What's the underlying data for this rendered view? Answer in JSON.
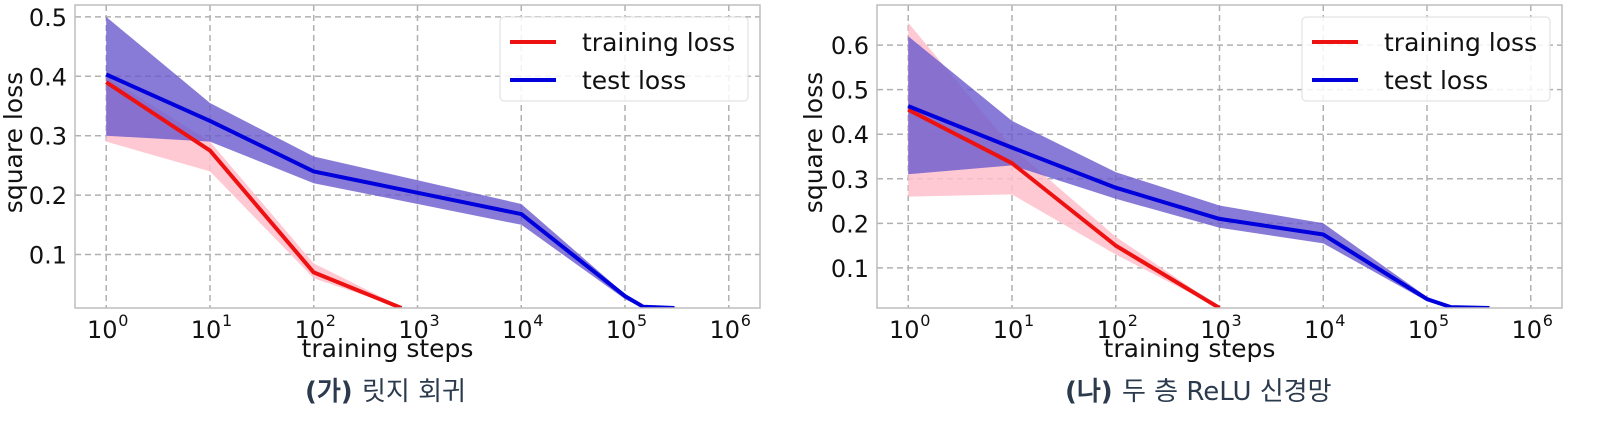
{
  "panels": [
    {
      "caption_label": "(가)",
      "caption_text": "릿지 회귀",
      "chart_data": {
        "type": "line",
        "xscale": "log",
        "xlim": [
          0.5,
          2000000
        ],
        "ylim": [
          0.01,
          0.52
        ],
        "xlabel": "training steps",
        "ylabel": "square loss",
        "yticks": [
          0.1,
          0.2,
          0.3,
          0.4,
          0.5
        ],
        "yticklabels": [
          "0.1",
          "0.2",
          "0.3",
          "0.4",
          "0.5"
        ],
        "xticks": [
          1,
          10,
          100,
          1000,
          10000,
          100000,
          1000000
        ],
        "xticklabels": [
          "0",
          "1",
          "2",
          "3",
          "4",
          "5",
          "6"
        ],
        "xtick_base": "10",
        "grid": true,
        "legend_position": "top-right",
        "series": [
          {
            "name": "training loss",
            "color": "#ee1111",
            "band_color": "#ffc0cb",
            "x": [
              1,
              10,
              100,
              700
            ],
            "y": [
              0.39,
              0.275,
              0.07,
              0.01
            ],
            "lower": [
              0.29,
              0.24,
              0.06,
              0.01
            ],
            "upper": [
              0.4,
              0.29,
              0.085,
              0.012
            ]
          },
          {
            "name": "test loss",
            "color": "#0000dd",
            "band_color": "#6a5acd",
            "x": [
              1,
              10,
              100,
              10000,
              100000,
              150000,
              300000
            ],
            "y": [
              0.403,
              0.325,
              0.24,
              0.168,
              0.03,
              0.012,
              0.01
            ],
            "lower": [
              0.3,
              0.29,
              0.22,
              0.15,
              0.025,
              0.01,
              0.01
            ],
            "upper": [
              0.5,
              0.355,
              0.265,
              0.185,
              0.033,
              0.014,
              0.01
            ]
          }
        ]
      }
    },
    {
      "caption_label": "(나)",
      "caption_text": "두 층 ReLU 신경망",
      "chart_data": {
        "type": "line",
        "xscale": "log",
        "xlim": [
          0.5,
          2000000
        ],
        "ylim": [
          0.01,
          0.69
        ],
        "xlabel": "training steps",
        "ylabel": "square loss",
        "yticks": [
          0.1,
          0.2,
          0.3,
          0.4,
          0.5,
          0.6
        ],
        "yticklabels": [
          "0.1",
          "0.2",
          "0.3",
          "0.4",
          "0.5",
          "0.6"
        ],
        "xticks": [
          1,
          10,
          100,
          1000,
          10000,
          100000,
          1000000
        ],
        "xticklabels": [
          "0",
          "1",
          "2",
          "3",
          "4",
          "5",
          "6"
        ],
        "xtick_base": "10",
        "grid": true,
        "legend_position": "top-right",
        "series": [
          {
            "name": "training loss",
            "color": "#ee1111",
            "band_color": "#ffc0cb",
            "x": [
              1,
              10,
              100,
              1000
            ],
            "y": [
              0.455,
              0.335,
              0.15,
              0.01
            ],
            "lower": [
              0.26,
              0.265,
              0.13,
              0.01
            ],
            "upper": [
              0.65,
              0.37,
              0.17,
              0.012
            ]
          },
          {
            "name": "test loss",
            "color": "#0000dd",
            "band_color": "#6a5acd",
            "x": [
              1,
              10,
              100,
              1000,
              10000,
              100000,
              170000,
              400000
            ],
            "y": [
              0.463,
              0.37,
              0.28,
              0.21,
              0.175,
              0.03,
              0.012,
              0.01
            ],
            "lower": [
              0.31,
              0.33,
              0.255,
              0.19,
              0.155,
              0.025,
              0.01,
              0.01
            ],
            "upper": [
              0.62,
              0.43,
              0.315,
              0.24,
              0.2,
              0.035,
              0.013,
              0.01
            ]
          }
        ]
      }
    }
  ]
}
